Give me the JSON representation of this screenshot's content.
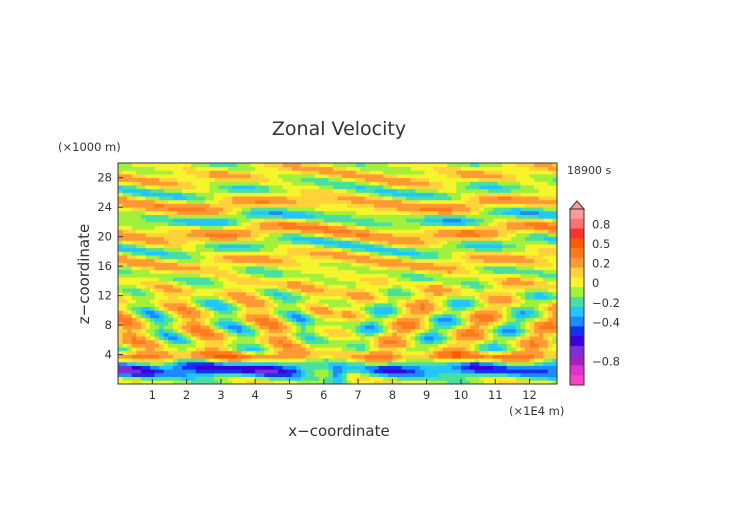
{
  "chart_data": {
    "type": "heatmap",
    "title": "Zonal Velocity",
    "xlabel": "x−coordinate",
    "ylabel": "z−coordinate",
    "x_unit": "(×1E4 m)",
    "y_unit": "(×1000 m)",
    "time_label": "18900 s",
    "x_range": [
      0,
      12.8
    ],
    "y_range": [
      0,
      30
    ],
    "x_ticks": [
      1,
      2,
      3,
      4,
      5,
      6,
      7,
      8,
      9,
      10,
      11,
      12
    ],
    "y_ticks": [
      4,
      8,
      12,
      16,
      20,
      24,
      28
    ],
    "colorbar": {
      "levels": [
        {
          "value": 1.0,
          "color": "#ff9a9a"
        },
        {
          "value": 0.8,
          "color": "#ff7070"
        },
        {
          "value": 0.65,
          "color": "#ff3030"
        },
        {
          "value": 0.5,
          "color": "#ff5a00"
        },
        {
          "value": 0.35,
          "color": "#ff7a1a"
        },
        {
          "value": 0.2,
          "color": "#ff9933"
        },
        {
          "value": 0.1,
          "color": "#ffd23a"
        },
        {
          "value": 0.0,
          "color": "#f6f42a"
        },
        {
          "value": -0.1,
          "color": "#a0f03c"
        },
        {
          "value": -0.2,
          "color": "#48e0a0"
        },
        {
          "value": -0.3,
          "color": "#22c6ff"
        },
        {
          "value": -0.4,
          "color": "#1a8cff"
        },
        {
          "value": -0.5,
          "color": "#1430f0"
        },
        {
          "value": -0.6,
          "color": "#3a00d8"
        },
        {
          "value": -0.7,
          "color": "#7a2fd8"
        },
        {
          "value": -0.8,
          "color": "#a020c0"
        },
        {
          "value": -0.9,
          "color": "#e030d0"
        },
        {
          "value": -1.0,
          "color": "#ff40c8"
        }
      ],
      "labels": [
        "0.8",
        "0.5",
        "0.2",
        "0",
        "−0.2",
        "−0.4",
        "−0.8"
      ]
    },
    "field_description_values": {
      "max_abs": 1.0,
      "dominant_range": [
        -0.4,
        0.4
      ]
    }
  }
}
